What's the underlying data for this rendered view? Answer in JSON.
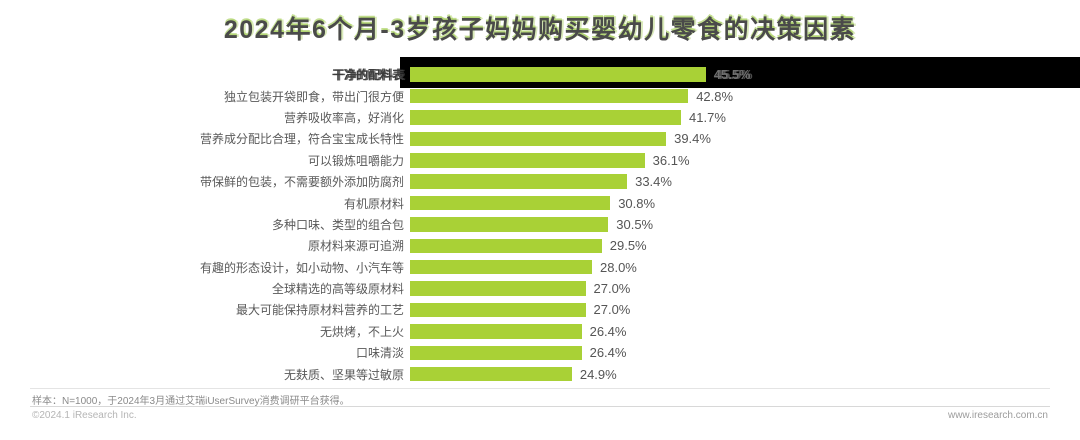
{
  "title": "2024年6个月-3岁孩子妈妈购买婴幼儿零食的决策因素",
  "chart_data": {
    "type": "bar",
    "orientation": "horizontal",
    "title": "2024年6个月-3岁孩子妈妈购买婴幼儿零食的决策因素",
    "categories": [
      "干净的配料表",
      "独立包装开袋即食，带出门很方便",
      "营养吸收率高，好消化",
      "营养成分配比合理，符合宝宝成长特性",
      "可以锻炼咀嚼能力",
      "带保鲜的包装，不需要额外添加防腐剂",
      "有机原材料",
      "多种口味、类型的组合包",
      "原材料来源可追溯",
      "有趣的形态设计，如小动物、小汽车等",
      "全球精选的高等级原材料",
      "最大可能保持原材料营养的工艺",
      "无烘烤，不上火",
      "口味清淡",
      "无麸质、坚果等过敏原"
    ],
    "values": [
      45.5,
      42.8,
      41.7,
      39.4,
      36.1,
      33.4,
      30.8,
      30.5,
      29.5,
      28.0,
      27.0,
      27.0,
      26.4,
      26.4,
      24.9
    ],
    "value_suffix": "%",
    "xlim": [
      0,
      50
    ],
    "grid": false,
    "legend": false,
    "bar_color": "#a9d136",
    "label_color": "#595959",
    "value_color": "#555555",
    "glitch_band_color": "#000000"
  },
  "footer": {
    "note": "样本：N=1000，于2024年3月通过艾瑞iUserSurvey消费调研平台获得。",
    "copyright": "©2024.1 iResearch Inc.",
    "website": "www.iresearch.com.cn"
  }
}
